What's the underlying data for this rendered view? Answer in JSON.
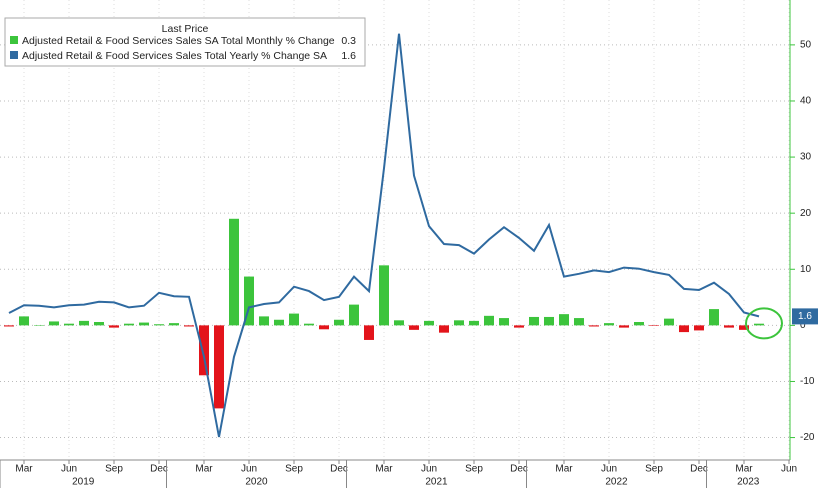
{
  "chart_data": {
    "type": "bar_line",
    "legend_title": "Last Price",
    "x": [
      "2019-02",
      "2019-03",
      "2019-04",
      "2019-05",
      "2019-06",
      "2019-07",
      "2019-08",
      "2019-09",
      "2019-10",
      "2019-11",
      "2019-12",
      "2020-01",
      "2020-02",
      "2020-03",
      "2020-04",
      "2020-05",
      "2020-06",
      "2020-07",
      "2020-08",
      "2020-09",
      "2020-10",
      "2020-11",
      "2020-12",
      "2021-01",
      "2021-02",
      "2021-03",
      "2021-04",
      "2021-05",
      "2021-06",
      "2021-07",
      "2021-08",
      "2021-09",
      "2021-10",
      "2021-11",
      "2021-12",
      "2022-01",
      "2022-02",
      "2022-03",
      "2022-04",
      "2022-05",
      "2022-06",
      "2022-07",
      "2022-08",
      "2022-09",
      "2022-10",
      "2022-11",
      "2022-12",
      "2023-01",
      "2023-02",
      "2023-03",
      "2023-04"
    ],
    "series": [
      {
        "name": "Adjusted Retail & Food Services Sales SA Total Monthly % Change",
        "kind": "bar",
        "color": "#3cc43c",
        "negative_color": "#e3141b",
        "values": [
          -0.2,
          1.6,
          0.0,
          0.7,
          0.3,
          0.8,
          0.6,
          -0.4,
          0.3,
          0.5,
          0.2,
          0.4,
          -0.2,
          -8.9,
          -14.8,
          19.0,
          8.7,
          1.6,
          1.0,
          2.1,
          0.3,
          -0.7,
          1.0,
          3.7,
          -2.6,
          10.7,
          0.9,
          -0.8,
          0.8,
          -1.3,
          0.9,
          0.8,
          1.7,
          1.3,
          -0.4,
          1.5,
          1.5,
          2.0,
          1.3,
          -0.2,
          0.4,
          -0.4,
          0.6,
          -0.1,
          1.2,
          -1.2,
          -0.9,
          2.9,
          -0.4,
          -0.8,
          0.3
        ]
      },
      {
        "name": "Adjusted Retail & Food Services Sales Total Yearly % Change SA",
        "kind": "line",
        "color": "#2f6aa0",
        "values": [
          2.2,
          3.6,
          3.5,
          3.2,
          3.6,
          3.7,
          4.2,
          4.1,
          3.2,
          3.5,
          5.8,
          5.2,
          5.1,
          -5.6,
          -19.9,
          -5.6,
          3.2,
          3.8,
          4.1,
          6.9,
          6.1,
          4.5,
          5.1,
          8.7,
          6.1,
          28.0,
          52.0,
          26.7,
          17.7,
          14.5,
          14.3,
          12.8,
          15.3,
          17.5,
          15.6,
          13.3,
          17.9,
          8.7,
          9.2,
          9.8,
          9.5,
          10.3,
          10.1,
          9.5,
          9.0,
          6.5,
          6.3,
          7.6,
          5.6,
          2.3,
          1.6
        ]
      }
    ],
    "ylim": [
      -24,
      58
    ],
    "yticks": [
      -20,
      -10,
      0,
      10,
      20,
      30,
      40,
      50
    ],
    "grid": true,
    "xticks": [
      {
        "value": "2019-03",
        "label": "Mar"
      },
      {
        "value": "2019-06",
        "label": "Jun"
      },
      {
        "value": "2019-09",
        "label": "Sep"
      },
      {
        "value": "2019-12",
        "label": "Dec"
      },
      {
        "value": "2020-03",
        "label": "Mar"
      },
      {
        "value": "2020-06",
        "label": "Jun"
      },
      {
        "value": "2020-09",
        "label": "Sep"
      },
      {
        "value": "2020-12",
        "label": "Dec"
      },
      {
        "value": "2021-03",
        "label": "Mar"
      },
      {
        "value": "2021-06",
        "label": "Jun"
      },
      {
        "value": "2021-09",
        "label": "Sep"
      },
      {
        "value": "2021-12",
        "label": "Dec"
      },
      {
        "value": "2022-03",
        "label": "Mar"
      },
      {
        "value": "2022-06",
        "label": "Jun"
      },
      {
        "value": "2022-09",
        "label": "Sep"
      },
      {
        "value": "2022-12",
        "label": "Dec"
      },
      {
        "value": "2023-03",
        "label": "Mar"
      },
      {
        "value": "2023-06",
        "label": "Jun"
      }
    ],
    "year_labels": [
      "2019",
      "2020",
      "2021",
      "2022",
      "2023"
    ]
  }
}
